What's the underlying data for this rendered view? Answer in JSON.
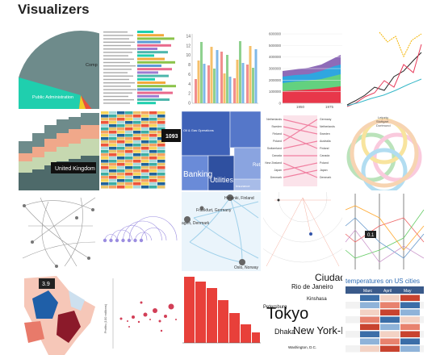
{
  "header": {
    "title": "Visualizers"
  },
  "pie_tile": {
    "labels": [
      "Public Administration",
      "Comp"
    ]
  },
  "bar_tile": {
    "yticks": [
      14,
      12,
      10,
      8,
      6,
      4,
      2,
      0
    ]
  },
  "area_tile": {
    "yticks": [
      600000,
      500000,
      400000,
      300000,
      200000,
      100000,
      0
    ],
    "xticks": [
      1950,
      1975
    ]
  },
  "stream_tile": {
    "tooltip": "United Kingdom"
  },
  "heat_tile": {
    "tooltip": 1093
  },
  "treemap_tile": {
    "labels": [
      "Oil & Gas Operations",
      "Banking",
      "Utilities",
      "Insurance",
      "Reta"
    ]
  },
  "slope_tile": {
    "left": [
      "Netherlands",
      "Sweden",
      "Finland",
      "Poland",
      "Switzerland",
      "Canada",
      "New Zealand",
      "Japan",
      "Denmark"
    ],
    "right": [
      "Germany",
      "Netherlands",
      "Sweden",
      "Australia",
      "Finland",
      "Canada",
      "Poland",
      "Japan",
      "Denmark"
    ]
  },
  "chord_tile": {
    "labels": [
      "Leipzig",
      "Stuttgart",
      "Dortmund"
    ]
  },
  "map_tile": {
    "labels": [
      "Helsinki, Finland",
      "Frankfurt, Germany",
      "agen, Denmark",
      "Oslo, Norway"
    ]
  },
  "parallel_tile": {
    "tooltip": 0.1
  },
  "choropleth_tile": {
    "tooltip": 3.9
  },
  "scatter_tile": {
    "axis_label": "Profits (100 millions)"
  },
  "word_tile": {
    "words": [
      "Tokyo",
      "Dhaka",
      "New York-N",
      "Rio de Janeiro",
      "Ciudad",
      "Kinshasa",
      "Petersburg",
      "Washington, D.C."
    ]
  },
  "table_tile": {
    "title": "temperatures on US cities",
    "columns": [
      "Marc",
      "April",
      "May"
    ]
  }
}
